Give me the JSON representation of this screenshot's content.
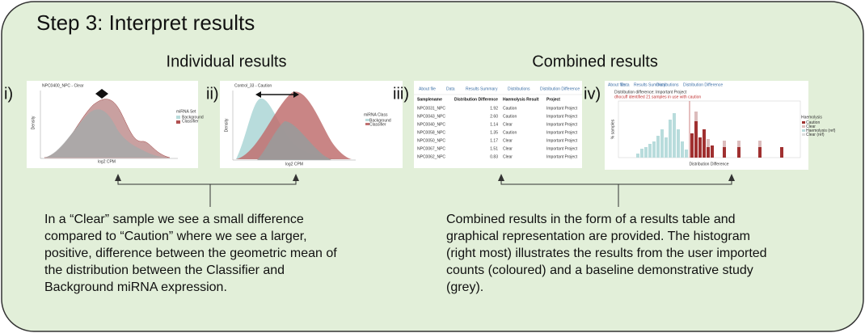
{
  "title": "Step 3: Interpret results",
  "sections": [
    {
      "heading": "Individual results",
      "panels": [
        {
          "label": "i)",
          "plot_title": "NPC0400_NPC - Clear",
          "x_label": "log2 CPM",
          "y_label": "Density",
          "legend_title": "miRNA Set",
          "legend": [
            "Background",
            "Classifier"
          ]
        },
        {
          "label": "ii)",
          "plot_title": "Control_33 - Caution",
          "x_label": "log2 CPM",
          "y_label": "Density",
          "legend_title": "miRNA Class",
          "legend": [
            "Background",
            "Classifier"
          ]
        }
      ],
      "description": [
        "In a “Clear” sample we see a small difference",
        "compared to “Caution” where we see a larger,",
        "positive, difference between the geometric mean of",
        "the distribution between the Classifier and",
        "Background miRNA expression."
      ]
    },
    {
      "heading": "Combined results",
      "panels": [
        {
          "label": "iii)",
          "tabs": [
            "About file",
            "Data",
            "Results Summary",
            "Distributions",
            "Distribution Difference"
          ],
          "table": {
            "header": [
              "Samplename",
              "Distribution Difference",
              "Haemolysis Result",
              "Project"
            ],
            "rows": [
              [
                "NPC0031_NPC",
                "1.92",
                "Caution",
                "Important Project"
              ],
              [
                "NPC0043_NPC",
                "2.60",
                "Caution",
                "Important Project"
              ],
              [
                "NPC0040_NPC",
                "1.14",
                "Clear",
                "Important Project"
              ],
              [
                "NPC0058_NPC",
                "1.35",
                "Caution",
                "Important Project"
              ],
              [
                "NPC0050_NPC",
                "1.17",
                "Clear",
                "Important Project"
              ],
              [
                "NPC0067_NPC",
                "1.51",
                "Clear",
                "Important Project"
              ],
              [
                "NPC0062_NPC",
                "0.83",
                "Clear",
                "Important Project"
              ]
            ]
          }
        },
        {
          "label": "iv)",
          "tabs": [
            "About file",
            "Data",
            "Results Summary",
            "Distributions",
            "Distribution Difference"
          ],
          "plot_title": "Distribution difference: Important Project",
          "plot_subtitle": "dhocuff identified 21 samples in use with caution",
          "x_label": "Distribution Difference",
          "y_label": "% samples",
          "legend_title": "Haemolysis",
          "legend": [
            "Caution",
            "Clear",
            "Haemolysis (ref)",
            "Clear (ref)"
          ]
        }
      ],
      "description": [
        "Combined results in the form of a results table and",
        "graphical representation are provided. The histogram",
        "(right most) illustrates the results from the user imported",
        "counts (coloured) and a baseline demonstrative study",
        "(grey)."
      ]
    }
  ]
}
